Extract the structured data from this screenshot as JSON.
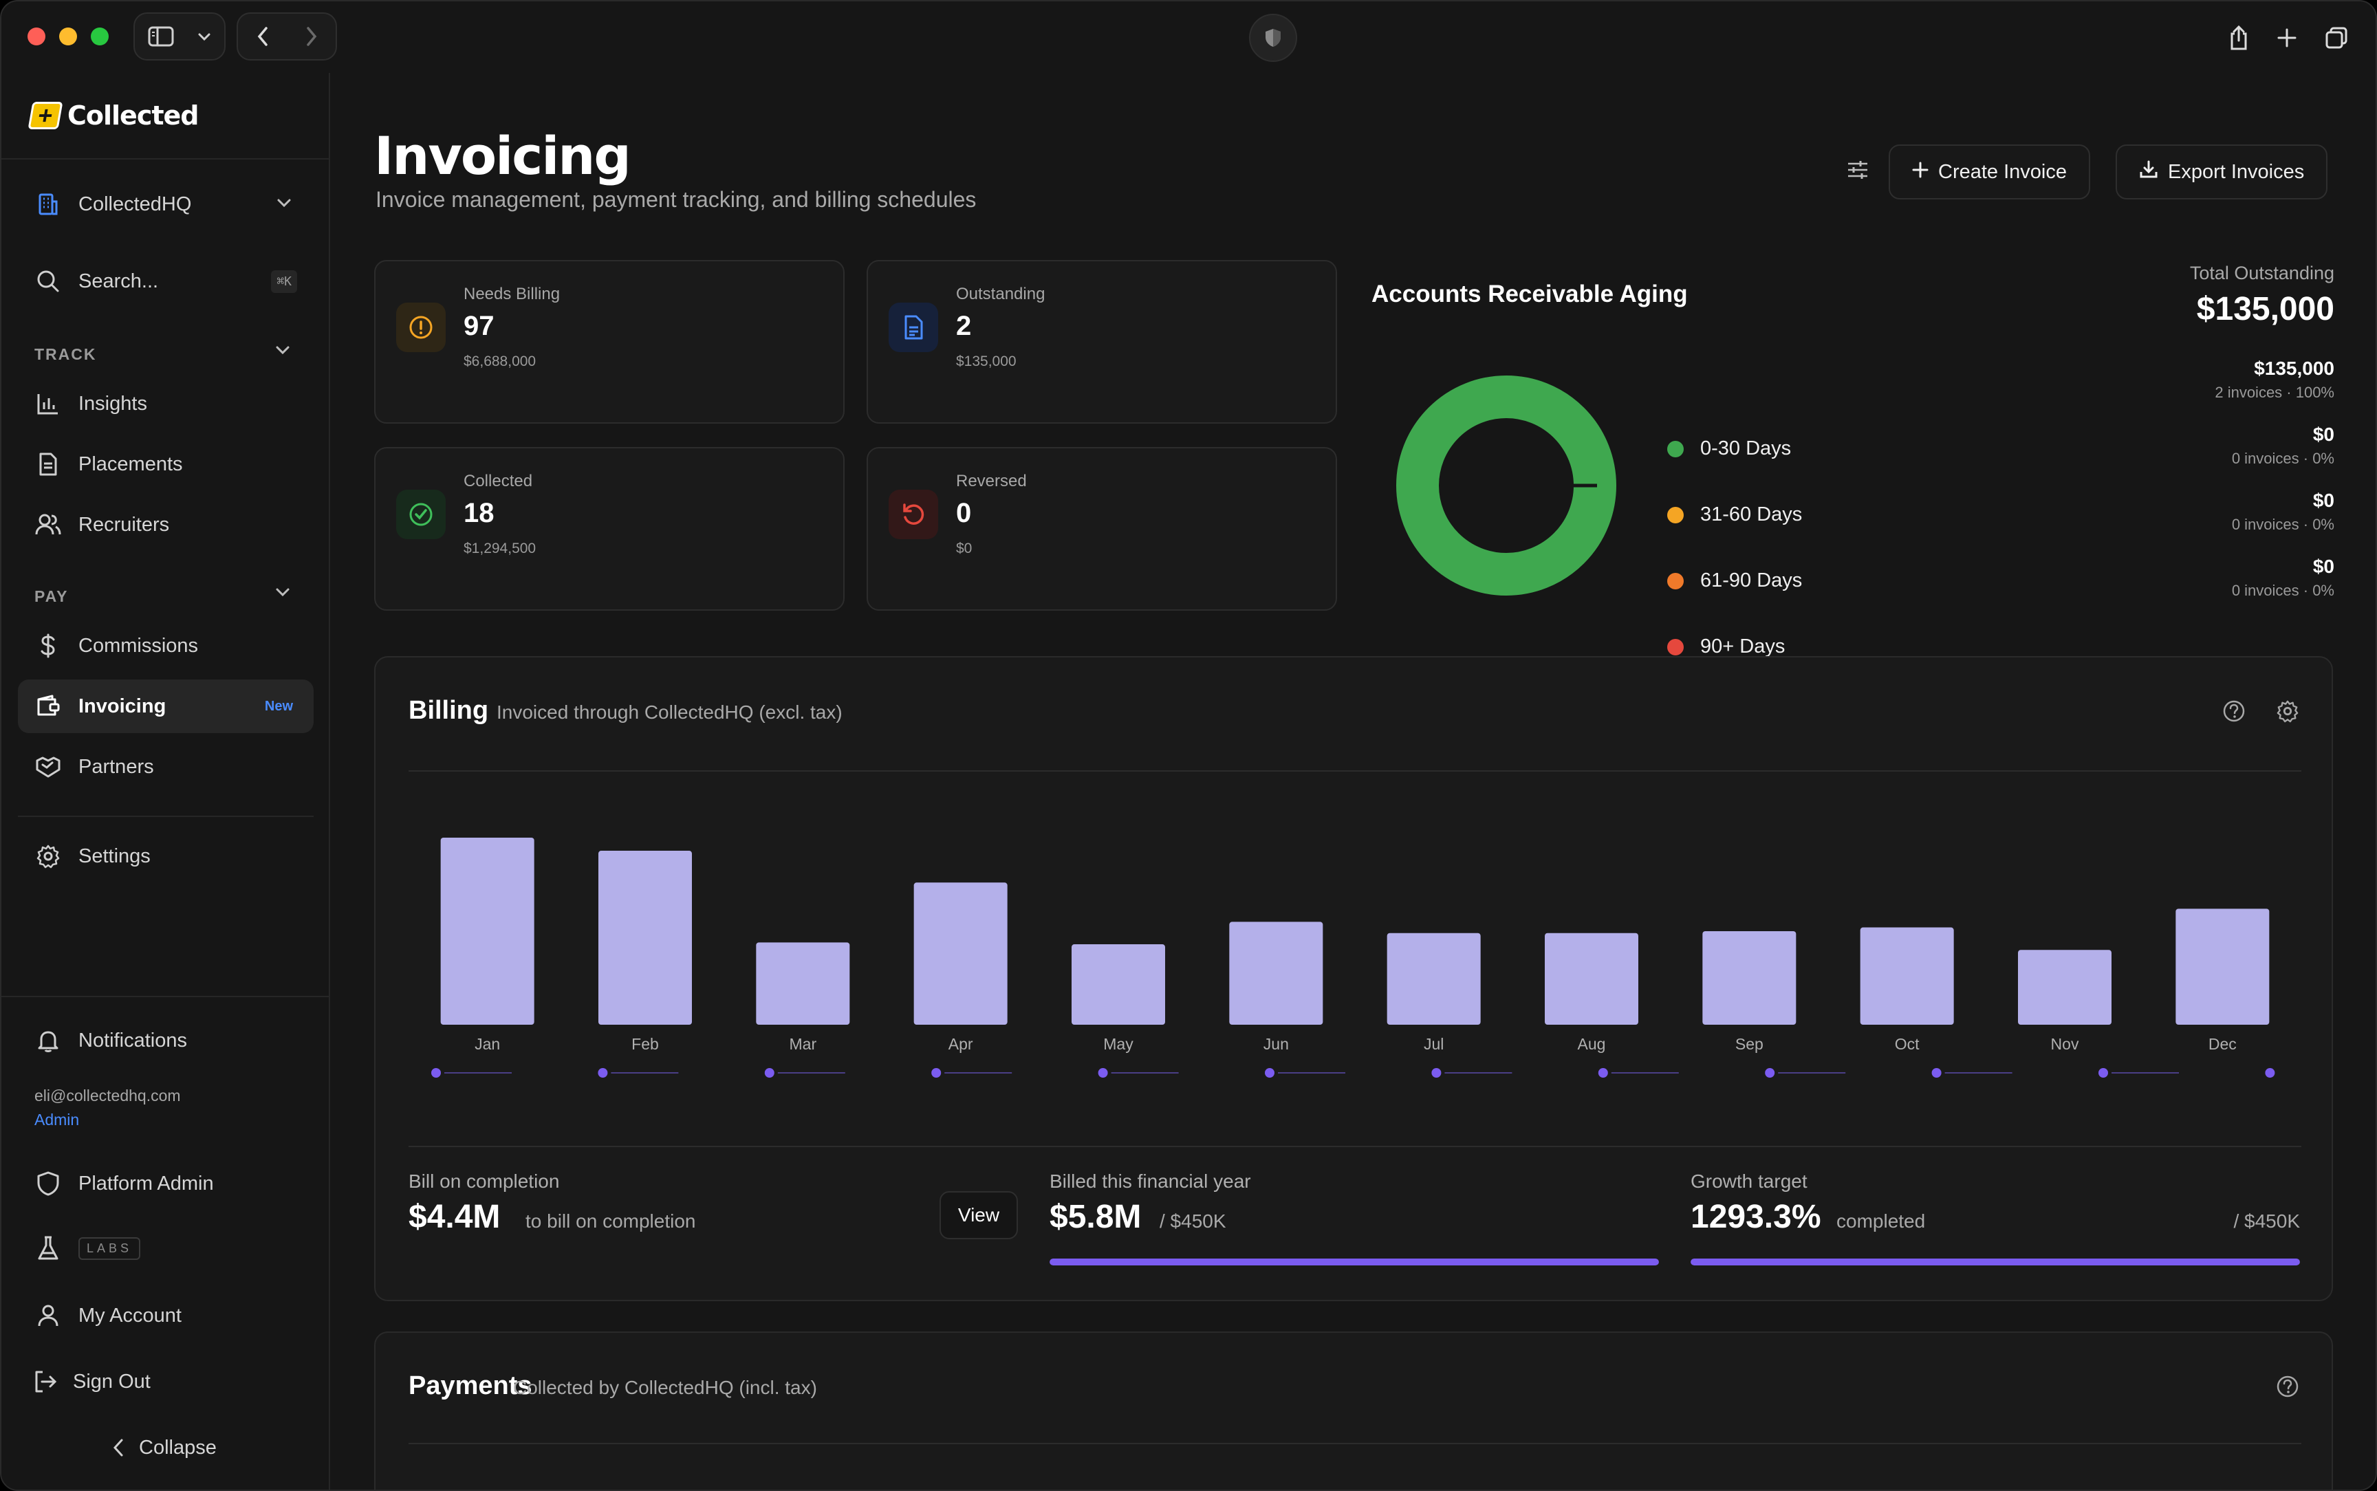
{
  "sidebar": {
    "logo_text": "Collected",
    "workspace": "CollectedHQ",
    "search_placeholder": "Search...",
    "search_shortcut": "⌘K",
    "track_label": "TRACK",
    "pay_label": "PAY",
    "items": {
      "insights": "Insights",
      "placements": "Placements",
      "recruiters": "Recruiters",
      "commissions": "Commissions",
      "invoicing": "Invoicing",
      "invoicing_badge": "New",
      "partners": "Partners",
      "settings": "Settings",
      "notifications": "Notifications",
      "platform_admin": "Platform Admin",
      "labs": "LABS",
      "my_account": "My Account",
      "sign_out": "Sign Out",
      "collapse": "Collapse"
    },
    "user": {
      "email": "eli@collectedhq.com",
      "role": "Admin"
    }
  },
  "header": {
    "title": "Invoicing",
    "subtitle": "Invoice management, payment tracking, and billing schedules",
    "create_label": "Create Invoice",
    "export_label": "Export Invoices"
  },
  "stats": [
    {
      "label": "Needs Billing",
      "value": "97",
      "amount": "$6,688,000",
      "color": "#f5a524"
    },
    {
      "label": "Outstanding",
      "value": "2",
      "amount": "$135,000",
      "color": "#4a8cff"
    },
    {
      "label": "Collected",
      "value": "18",
      "amount": "$1,294,500",
      "color": "#3fbf5a"
    },
    {
      "label": "Reversed",
      "value": "0",
      "amount": "$0",
      "color": "#e5483d"
    }
  ],
  "aging": {
    "title": "Accounts Receivable Aging",
    "total_label": "Total Outstanding",
    "total": "$135,000",
    "buckets": [
      {
        "label": "0-30 Days",
        "amount": "$135,000",
        "detail": "2 invoices · 100%",
        "color": "#3fa84f",
        "share": 100
      },
      {
        "label": "31-60 Days",
        "amount": "$0",
        "detail": "0 invoices · 0%",
        "color": "#f5a524",
        "share": 0
      },
      {
        "label": "61-90 Days",
        "amount": "$0",
        "detail": "0 invoices · 0%",
        "color": "#f07a2a",
        "share": 0
      },
      {
        "label": "90+ Days",
        "amount": "$0",
        "detail": "0 invoices · 0%",
        "color": "#e5483d",
        "share": 0
      }
    ]
  },
  "billing": {
    "title": "Billing",
    "subtitle": "Invoiced through CollectedHQ (excl. tax)",
    "bar_color": "#b4b0ea",
    "dot_color": "#7b5cf0",
    "kpis": {
      "bill_on_completion_label": "Bill on completion",
      "bill_on_completion_value": "$4.4M",
      "bill_on_completion_note": "to bill on completion",
      "view_label": "View",
      "billed_fy_label": "Billed this financial year",
      "billed_fy_value": "$5.8M",
      "billed_fy_target": "/ $450K",
      "growth_label": "Growth target",
      "growth_value": "1293.3%",
      "growth_note": "completed",
      "growth_target": "/ $450K"
    }
  },
  "chart_data": {
    "type": "bar",
    "categories": [
      "Jan",
      "Feb",
      "Mar",
      "Apr",
      "May",
      "Jun",
      "Jul",
      "Aug",
      "Sep",
      "Oct",
      "Nov",
      "Dec"
    ],
    "values": [
      100,
      93,
      44,
      76,
      43,
      55,
      49,
      49,
      50,
      52,
      40,
      62
    ],
    "title": "",
    "xlabel": "",
    "ylabel": "",
    "ylim": [
      0,
      100
    ],
    "grid": false
  },
  "payments": {
    "title": "Payments",
    "subtitle": "Collected by CollectedHQ (incl. tax)"
  }
}
